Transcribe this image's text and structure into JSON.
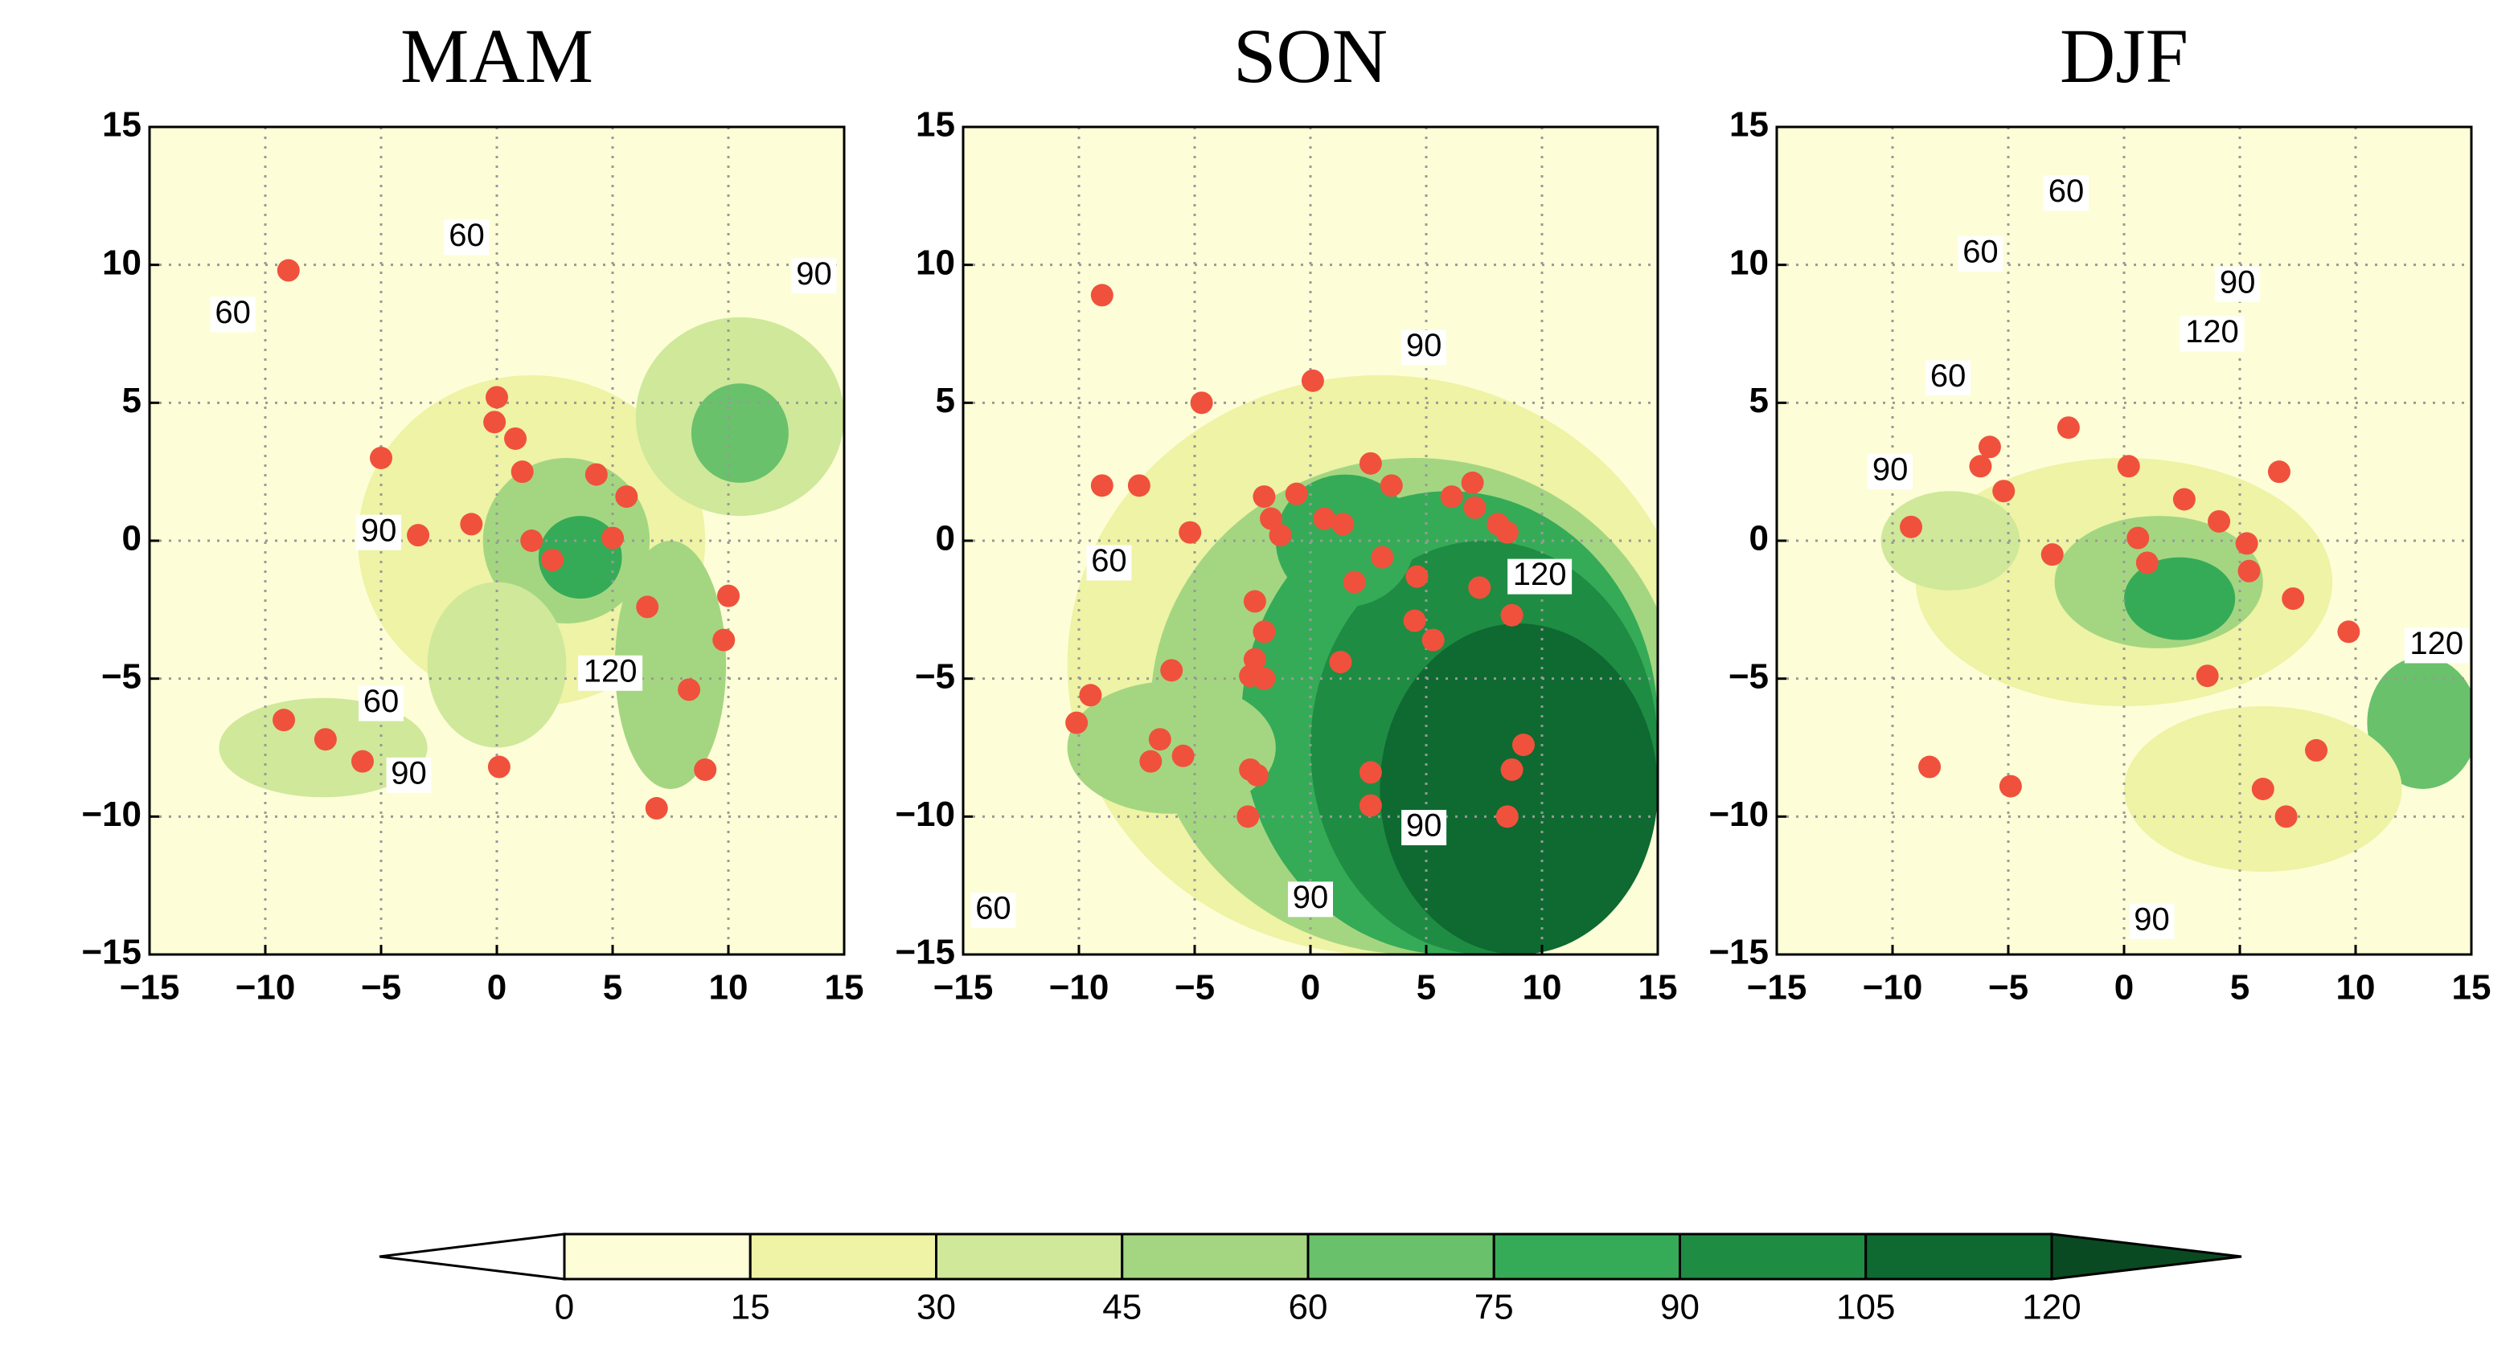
{
  "chart_data": [
    {
      "type": "scatter",
      "title": "MAM",
      "xlim": [
        -15,
        15
      ],
      "ylim": [
        -15,
        15
      ],
      "xticks": [
        {
          "value": -15,
          "label": "−15"
        },
        {
          "value": -10,
          "label": "−10"
        },
        {
          "value": -5,
          "label": "−5"
        },
        0,
        5,
        10,
        15
      ],
      "yticks": [
        {
          "value": -15,
          "label": "−15"
        },
        {
          "value": -10,
          "label": "−10"
        },
        {
          "value": -5,
          "label": "−5"
        },
        0,
        5,
        10,
        15
      ],
      "grid": true,
      "color": "#f0513c",
      "x": [
        -9.0,
        -5.0,
        0,
        -0.1,
        0.8,
        1.1,
        -3.4,
        -1.1,
        1.5,
        2.4,
        4.3,
        5.6,
        5.0,
        6.5,
        10.0,
        9.8,
        8.3,
        -9.2,
        -7.4,
        -5.8,
        0.1,
        6.9,
        9.0
      ],
      "y": [
        9.8,
        3.0,
        5.2,
        4.3,
        3.7,
        2.5,
        0.2,
        0.6,
        0,
        -0.7,
        2.4,
        1.6,
        0.1,
        -2.4,
        -2.0,
        -3.6,
        -5.4,
        -6.5,
        -7.2,
        -8.0,
        -8.2,
        -9.7,
        -8.3
      ],
      "contour_labels": [
        {
          "text": "60",
          "x": -1.3,
          "y": 11.0
        },
        {
          "text": "60",
          "x": -11.4,
          "y": 8.2
        },
        {
          "text": "90",
          "x": 13.7,
          "y": 9.6
        },
        {
          "text": "90",
          "x": -5.1,
          "y": 0.3
        },
        {
          "text": "120",
          "x": 4.9,
          "y": -4.8
        },
        {
          "text": "60",
          "x": -5.0,
          "y": -5.9
        },
        {
          "text": "90",
          "x": -3.8,
          "y": -8.5
        }
      ]
    },
    {
      "type": "scatter",
      "title": "SON",
      "xlim": [
        -15,
        15
      ],
      "ylim": [
        -15,
        15
      ],
      "xticks": [
        {
          "value": -15,
          "label": "−15"
        },
        {
          "value": -10,
          "label": "−10"
        },
        {
          "value": -5,
          "label": "−5"
        },
        0,
        5,
        10,
        15
      ],
      "yticks": [
        {
          "value": -15,
          "label": "−15"
        },
        {
          "value": -10,
          "label": "−10"
        },
        {
          "value": -5,
          "label": "−5"
        },
        0,
        5,
        10,
        15
      ],
      "grid": true,
      "color": "#f0513c",
      "x": [
        -9.0,
        -4.7,
        0.1,
        -9.0,
        -7.4,
        -5.2,
        -2.0,
        -0.6,
        -1.7,
        -1.3,
        0.6,
        1.4,
        2.6,
        3.5,
        6.1,
        7.0,
        7.1,
        8.1,
        8.5,
        3.1,
        1.9,
        4.6,
        7.3,
        8.7,
        4.5,
        5.3,
        -2.4,
        -2.0,
        -2.4,
        -2.6,
        -2.0,
        1.3,
        -6.0,
        -9.5,
        -10.1,
        -6.5,
        -6.9,
        -5.5,
        -2.6,
        -2.3,
        -2.7,
        2.6,
        2.6,
        9.2,
        8.7,
        8.5
      ],
      "y": [
        8.9,
        5.0,
        5.8,
        2.0,
        2.0,
        0.3,
        1.6,
        1.7,
        0.8,
        0.2,
        0.8,
        0.6,
        2.8,
        2.0,
        1.6,
        2.1,
        1.2,
        0.6,
        0.3,
        -0.6,
        -1.5,
        -1.3,
        -1.7,
        -2.7,
        -2.9,
        -3.6,
        -2.2,
        -3.3,
        -4.3,
        -4.9,
        -5.0,
        -4.4,
        -4.7,
        -5.6,
        -6.6,
        -7.2,
        -8.0,
        -7.8,
        -8.3,
        -8.5,
        -10.0,
        -8.4,
        -9.6,
        -7.4,
        -8.3,
        -10.0
      ],
      "contour_labels": [
        {
          "text": "90",
          "x": 4.9,
          "y": 7.0
        },
        {
          "text": "60",
          "x": -8.7,
          "y": -0.8
        },
        {
          "text": "120",
          "x": 9.9,
          "y": -1.3
        },
        {
          "text": "90",
          "x": 4.9,
          "y": -10.4
        },
        {
          "text": "90",
          "x": 0,
          "y": -13.0
        },
        {
          "text": "60",
          "x": -13.7,
          "y": -13.4
        }
      ]
    },
    {
      "type": "scatter",
      "title": "DJF",
      "xlim": [
        -15,
        15
      ],
      "ylim": [
        -15,
        15
      ],
      "xticks": [
        {
          "value": -15,
          "label": "−15"
        },
        {
          "value": -10,
          "label": "−10"
        },
        {
          "value": -5,
          "label": "−5"
        },
        0,
        5,
        10,
        15
      ],
      "yticks": [
        {
          "value": -15,
          "label": "−15"
        },
        {
          "value": -10,
          "label": "−10"
        },
        {
          "value": -5,
          "label": "−5"
        },
        0,
        5,
        10,
        15
      ],
      "grid": true,
      "color": "#f0513c",
      "x": [
        -5.8,
        -6.2,
        -5.2,
        -2.4,
        0.2,
        6.7,
        2.6,
        4.1,
        5.3,
        5.4,
        7.3,
        -9.2,
        -3.1,
        0.6,
        1.0,
        9.7,
        3.6,
        -8.4,
        -4.9,
        8.3,
        6.0,
        7.0
      ],
      "y": [
        3.4,
        2.7,
        1.8,
        4.1,
        2.7,
        2.5,
        1.5,
        0.7,
        -0.1,
        -1.1,
        -2.1,
        0.5,
        -0.5,
        0.1,
        -0.8,
        -3.3,
        -4.9,
        -8.2,
        -8.9,
        -7.6,
        -9.0,
        -10.0
      ],
      "contour_labels": [
        {
          "text": "60",
          "x": -2.5,
          "y": 12.6
        },
        {
          "text": "60",
          "x": -6.2,
          "y": 10.4
        },
        {
          "text": "90",
          "x": 4.9,
          "y": 9.3
        },
        {
          "text": "120",
          "x": 3.8,
          "y": 7.5
        },
        {
          "text": "60",
          "x": -7.6,
          "y": 5.9
        },
        {
          "text": "90",
          "x": -10.1,
          "y": 2.5
        },
        {
          "text": "120",
          "x": 13.5,
          "y": -3.8
        },
        {
          "text": "90",
          "x": 1.2,
          "y": -13.8
        }
      ]
    }
  ],
  "colorbar": {
    "ticks": [
      0,
      15,
      30,
      45,
      60,
      75,
      90,
      105,
      120
    ],
    "colors": [
      "#fdfed8",
      "#eef3a5",
      "#cfe89a",
      "#a4d682",
      "#69c16b",
      "#36ab57",
      "#1f8c43",
      "#0e6a31"
    ],
    "under_color": "#ffffff",
    "over_color": "#0a4a22"
  }
}
